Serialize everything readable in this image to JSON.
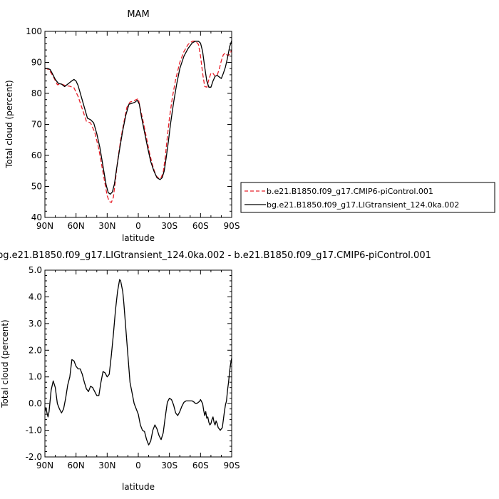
{
  "chart_data": [
    {
      "type": "line",
      "title": "MAM",
      "xlabel": "latitude",
      "ylabel": "Total cloud (percent)",
      "xlim": [
        90,
        -90
      ],
      "ylim": [
        40,
        100
      ],
      "xticks": [
        90,
        60,
        30,
        0,
        -30,
        -60,
        -90
      ],
      "xtick_labels": [
        "90N",
        "60N",
        "30N",
        "0",
        "30S",
        "60S",
        "90S"
      ],
      "yticks": [
        40,
        50,
        60,
        70,
        80,
        90,
        100
      ],
      "ytick_labels": [
        "40",
        "50",
        "60",
        "70",
        "80",
        "90",
        "100"
      ],
      "legend_position": "right",
      "series": [
        {
          "name": "b.e21.B1850.f09_g17.CMIP6-piControl.001",
          "color": "#e8202a",
          "dash": "dashed",
          "x": [
            90,
            86,
            82,
            78,
            74,
            70,
            66,
            62,
            58,
            54,
            50,
            46,
            42,
            38,
            34,
            30,
            28,
            26,
            24,
            22,
            20,
            17,
            14,
            11,
            8,
            5,
            2,
            0,
            -2,
            -5,
            -8,
            -11,
            -14,
            -17,
            -20,
            -22,
            -24,
            -26,
            -28,
            -30,
            -33,
            -36,
            -40,
            -44,
            -48,
            -52,
            -55,
            -58,
            -60,
            -62,
            -64,
            -66,
            -68,
            -70,
            -72,
            -74,
            -76,
            -78,
            -80,
            -82,
            -84,
            -86,
            -88,
            -90
          ],
          "y": [
            88.2,
            87.6,
            85.5,
            82.8,
            83.0,
            82.5,
            82.3,
            81.8,
            79.0,
            75.0,
            71.0,
            70.5,
            67.5,
            62.0,
            54.5,
            47.0,
            45.2,
            44.8,
            46.5,
            52.0,
            58.0,
            65.0,
            70.5,
            75.5,
            77.2,
            77.5,
            78.0,
            78.3,
            75.0,
            70.5,
            65.5,
            60.5,
            56.5,
            53.5,
            52.5,
            52.8,
            54.5,
            59.5,
            66.0,
            72.0,
            79.0,
            84.5,
            90.0,
            93.5,
            95.8,
            96.8,
            96.9,
            95.8,
            92.0,
            86.5,
            82.2,
            82.0,
            84.5,
            86.5,
            86.5,
            85.5,
            85.8,
            87.8,
            90.5,
            92.5,
            93.0,
            92.2,
            92.5,
            94.0
          ]
        },
        {
          "name": "bg.e21.B1850.f09_g17.LIGtransient_124.0ka.002",
          "color": "#000000",
          "dash": "solid",
          "x": [
            90,
            87,
            85,
            83,
            80,
            77,
            74,
            71,
            68,
            65,
            62,
            60,
            58,
            55,
            52,
            49,
            46,
            43,
            40,
            37,
            34,
            31,
            29,
            27,
            25,
            23,
            21,
            18,
            15,
            12,
            9,
            6,
            3,
            1,
            -1,
            -3,
            -6,
            -9,
            -12,
            -15,
            -18,
            -21,
            -23,
            -25,
            -27,
            -29,
            -31,
            -34,
            -37,
            -40,
            -44,
            -48,
            -52,
            -55,
            -58,
            -60,
            -62,
            -64,
            -66,
            -68,
            -70,
            -72,
            -74,
            -76,
            -78,
            -80,
            -82,
            -84,
            -86,
            -88,
            -90
          ],
          "y": [
            88.0,
            88.0,
            87.7,
            86.5,
            84.5,
            83.2,
            83.0,
            82.2,
            83.0,
            83.8,
            84.5,
            84.0,
            82.5,
            79.0,
            75.5,
            72.0,
            71.5,
            70.5,
            67.0,
            62.5,
            56.5,
            50.5,
            48.0,
            47.5,
            48.2,
            50.8,
            55.5,
            62.0,
            68.0,
            73.0,
            76.5,
            76.8,
            77.2,
            77.8,
            76.5,
            72.5,
            67.5,
            62.5,
            58.0,
            55.0,
            52.8,
            52.2,
            52.8,
            55.0,
            59.5,
            64.5,
            70.0,
            77.0,
            83.0,
            88.0,
            92.0,
            94.5,
            96.3,
            96.8,
            96.8,
            96.2,
            93.5,
            88.5,
            84.0,
            82.0,
            82.0,
            84.0,
            85.5,
            85.8,
            85.3,
            84.8,
            86.5,
            88.5,
            91.5,
            95.0,
            97.0
          ]
        }
      ]
    },
    {
      "type": "line",
      "title": "bg.e21.B1850.f09_g17.LIGtransient_124.0ka.002 - b.e21.B1850.f09_g17.CMIP6-piControl.001",
      "xlabel": "latitude",
      "ylabel": "Total cloud (percent)",
      "xlim": [
        90,
        -90
      ],
      "ylim": [
        -2.0,
        5.0
      ],
      "xticks": [
        90,
        60,
        30,
        0,
        -30,
        -60,
        -90
      ],
      "xtick_labels": [
        "90N",
        "60N",
        "30N",
        "0",
        "30S",
        "60S",
        "90S"
      ],
      "yticks": [
        -2,
        -1,
        0,
        1,
        2,
        3,
        4,
        5
      ],
      "ytick_labels": [
        "-2.0",
        "-1.0",
        "0.0",
        "1.0",
        "2.0",
        "3.0",
        "4.0",
        "5.0"
      ],
      "series": [
        {
          "color": "#000000",
          "dash": "solid",
          "x": [
            90,
            89,
            88,
            87,
            86,
            84,
            82,
            80,
            78,
            76,
            74,
            72,
            70,
            68,
            66,
            64,
            62,
            60,
            58,
            56,
            54,
            52,
            50,
            48,
            46,
            44,
            42,
            40,
            38,
            36,
            34,
            32,
            30,
            28,
            26,
            24,
            22,
            20,
            18,
            17,
            16,
            15,
            14,
            12,
            10,
            8,
            6,
            4,
            2,
            0,
            -2,
            -4,
            -6,
            -8,
            -10,
            -12,
            -14,
            -16,
            -18,
            -20,
            -22,
            -24,
            -26,
            -28,
            -30,
            -32,
            -34,
            -36,
            -38,
            -40,
            -42,
            -44,
            -46,
            -48,
            -50,
            -52,
            -54,
            -55,
            -56,
            -57,
            -58,
            -59,
            -60,
            -62,
            -63,
            -64,
            -65,
            -66,
            -67,
            -68,
            -69,
            -70,
            -71,
            -72,
            -73,
            -74,
            -75,
            -76,
            -77,
            -78,
            -79,
            -80,
            -81,
            -82,
            -83,
            -84,
            -85,
            -86,
            -87,
            -88,
            -89,
            -90
          ],
          "y": [
            -0.3,
            -0.15,
            -0.35,
            -0.5,
            -0.3,
            0.5,
            0.85,
            0.6,
            0.0,
            -0.2,
            -0.35,
            -0.2,
            0.2,
            0.7,
            1.0,
            1.65,
            1.6,
            1.4,
            1.3,
            1.3,
            1.1,
            0.8,
            0.55,
            0.45,
            0.65,
            0.6,
            0.45,
            0.3,
            0.3,
            0.8,
            1.2,
            1.15,
            1.0,
            1.1,
            1.8,
            2.6,
            3.5,
            4.2,
            4.65,
            4.6,
            4.4,
            4.2,
            3.8,
            2.8,
            1.8,
            0.8,
            0.4,
            0.0,
            -0.2,
            -0.4,
            -0.8,
            -1.0,
            -1.05,
            -1.35,
            -1.55,
            -1.4,
            -1.0,
            -0.8,
            -0.95,
            -1.2,
            -1.35,
            -1.1,
            -0.5,
            0.05,
            0.2,
            0.15,
            -0.05,
            -0.35,
            -0.45,
            -0.3,
            -0.1,
            0.05,
            0.1,
            0.1,
            0.1,
            0.1,
            0.05,
            0.0,
            0.0,
            0.02,
            0.05,
            0.08,
            0.15,
            0.0,
            -0.25,
            -0.45,
            -0.3,
            -0.55,
            -0.5,
            -0.7,
            -0.8,
            -0.75,
            -0.6,
            -0.5,
            -0.7,
            -0.8,
            -0.65,
            -0.75,
            -0.9,
            -0.95,
            -1.0,
            -0.95,
            -0.9,
            -0.6,
            -0.3,
            -0.05,
            0.1,
            0.5,
            0.8,
            1.2,
            1.5,
            1.7
          ]
        }
      ]
    }
  ]
}
